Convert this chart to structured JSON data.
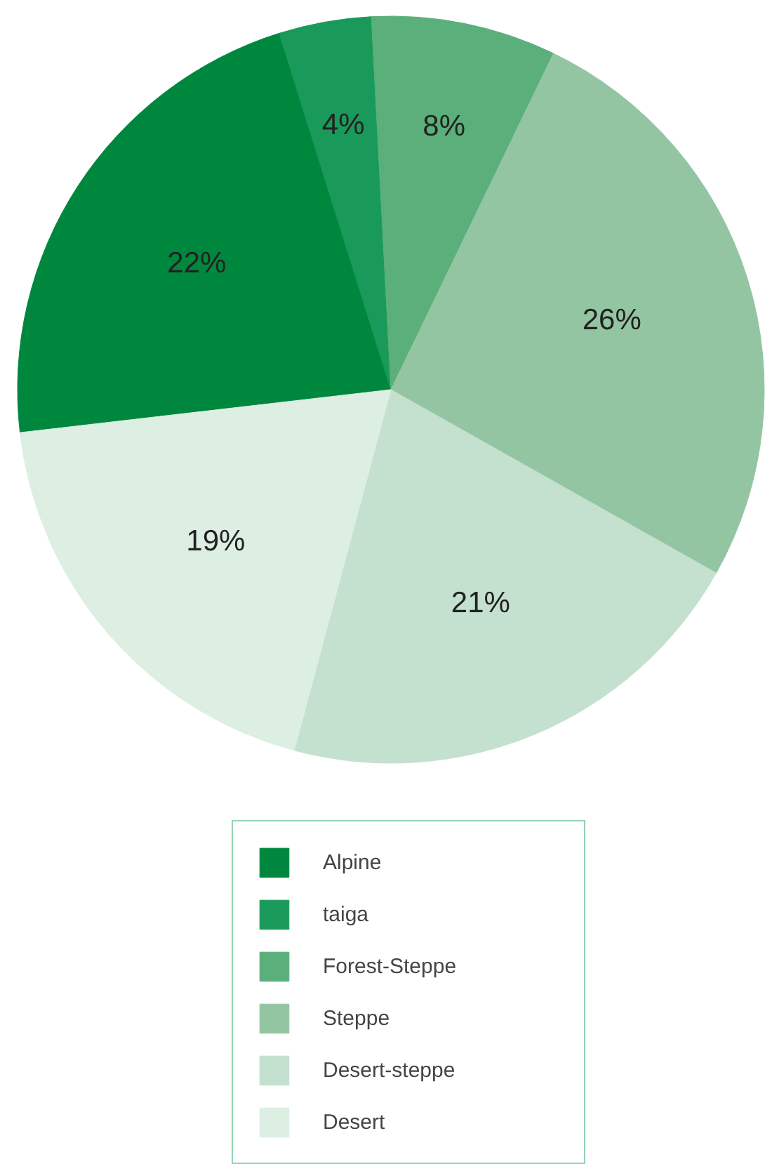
{
  "chart_data": {
    "type": "pie",
    "categories": [
      "Alpine",
      "taiga",
      "Forest-Steppe",
      "Steppe",
      "Desert-steppe",
      "Desert"
    ],
    "values": [
      22,
      4,
      8,
      26,
      21,
      19
    ],
    "colors": [
      "#00873e",
      "#1a9a5a",
      "#5aaf7a",
      "#93c5a3",
      "#c4e0cf",
      "#ddeee3"
    ],
    "value_labels": [
      "22%",
      "4%",
      "8%",
      "26%",
      "21%",
      "19%"
    ],
    "legend": "bottom"
  }
}
